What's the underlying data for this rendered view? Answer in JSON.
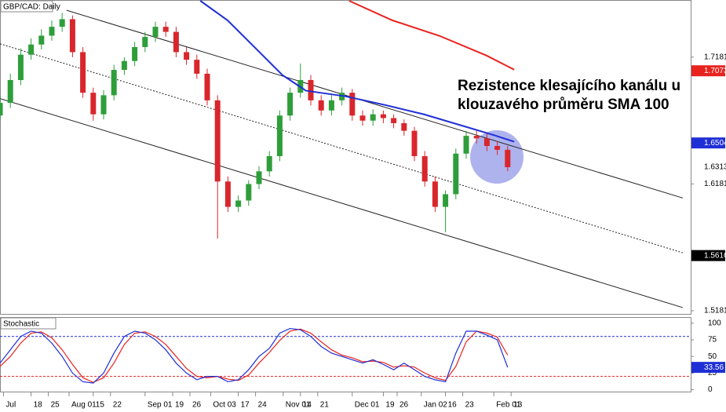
{
  "chart_data": [
    {
      "type": "candlestick",
      "title": "GBP/CAD: Daily",
      "annotation": [
        "Rezistence klesajícího kanálu u",
        "klouzavého průměru SMA 100"
      ],
      "up_color": "#2e9e3a",
      "down_color": "#d9262c",
      "xlim": [
        0,
        200
      ],
      "ylim": [
        1.5156,
        1.7625
      ],
      "yticks": [
        1.7181,
        1.6181,
        1.5181
      ],
      "xticks": [
        {
          "value": 1,
          "label": "Jul"
        },
        {
          "value": 9,
          "label": "18"
        },
        {
          "value": 14,
          "label": "25"
        },
        {
          "value": 20,
          "label": "Aug 01"
        },
        {
          "value": 27,
          "label": "15"
        },
        {
          "value": 32,
          "label": "22"
        },
        {
          "value": 42,
          "label": "Sep 01"
        },
        {
          "value": 50,
          "label": "19"
        },
        {
          "value": 55,
          "label": "26"
        },
        {
          "value": 61,
          "label": "Oct 03"
        },
        {
          "value": 69,
          "label": "17"
        },
        {
          "value": 74,
          "label": "24"
        },
        {
          "value": 82,
          "label": "Nov 01"
        },
        {
          "value": 87,
          "label": "14"
        },
        {
          "value": 92,
          "label": "21"
        },
        {
          "value": 102,
          "label": "Dec 01"
        },
        {
          "value": 111,
          "label": "19"
        },
        {
          "value": 115,
          "label": "26"
        },
        {
          "value": 122,
          "label": "Jan 02"
        },
        {
          "value": 129,
          "label": "16"
        },
        {
          "value": 134,
          "label": "23"
        },
        {
          "value": 143,
          "label": "Feb 01"
        },
        {
          "value": 148,
          "label": "13"
        }
      ],
      "x": [
        0,
        3,
        6,
        9,
        12,
        15,
        18,
        21,
        24,
        27,
        30,
        33,
        36,
        39,
        42,
        45,
        48,
        51,
        54,
        57,
        60,
        63,
        66,
        69,
        72,
        75,
        78,
        81,
        84,
        87,
        90,
        93,
        96,
        99,
        102,
        105,
        108,
        111,
        114,
        117,
        120,
        123,
        126,
        129,
        132,
        135,
        138,
        141,
        144,
        147
      ],
      "open": [
        1.672,
        1.682,
        1.7,
        1.72,
        1.728,
        1.735,
        1.742,
        1.748,
        1.722,
        1.69,
        1.673,
        1.688,
        1.708,
        1.715,
        1.726,
        1.734,
        1.742,
        1.738,
        1.722,
        1.716,
        1.705,
        1.684,
        1.62,
        1.6,
        1.605,
        1.618,
        1.628,
        1.64,
        1.672,
        1.69,
        1.7,
        1.684,
        1.676,
        1.684,
        1.69,
        1.672,
        1.668,
        1.673,
        1.67,
        1.666,
        1.66,
        1.64,
        1.62,
        1.6,
        1.61,
        1.642,
        1.656,
        1.654,
        1.648,
        1.645
      ],
      "high": [
        1.688,
        1.705,
        1.725,
        1.733,
        1.74,
        1.747,
        1.753,
        1.751,
        1.726,
        1.694,
        1.692,
        1.712,
        1.718,
        1.73,
        1.738,
        1.746,
        1.746,
        1.742,
        1.726,
        1.72,
        1.709,
        1.688,
        1.624,
        1.609,
        1.621,
        1.632,
        1.644,
        1.676,
        1.694,
        1.713,
        1.704,
        1.688,
        1.688,
        1.694,
        1.693,
        1.676,
        1.677,
        1.676,
        1.673,
        1.669,
        1.663,
        1.644,
        1.624,
        1.613,
        1.646,
        1.66,
        1.66,
        1.658,
        1.652,
        1.648
      ],
      "low": [
        1.668,
        1.678,
        1.696,
        1.716,
        1.724,
        1.731,
        1.738,
        1.718,
        1.686,
        1.668,
        1.669,
        1.684,
        1.704,
        1.711,
        1.722,
        1.73,
        1.734,
        1.718,
        1.712,
        1.701,
        1.68,
        1.575,
        1.596,
        1.596,
        1.601,
        1.614,
        1.624,
        1.636,
        1.668,
        1.686,
        1.68,
        1.672,
        1.672,
        1.68,
        1.668,
        1.664,
        1.664,
        1.666,
        1.662,
        1.656,
        1.636,
        1.616,
        1.596,
        1.58,
        1.606,
        1.638,
        1.65,
        1.644,
        1.641,
        1.628
      ],
      "close": [
        1.682,
        1.7,
        1.72,
        1.728,
        1.735,
        1.742,
        1.748,
        1.722,
        1.69,
        1.673,
        1.688,
        1.708,
        1.715,
        1.726,
        1.734,
        1.742,
        1.738,
        1.722,
        1.716,
        1.705,
        1.684,
        1.62,
        1.6,
        1.605,
        1.618,
        1.628,
        1.64,
        1.672,
        1.69,
        1.7,
        1.684,
        1.676,
        1.684,
        1.69,
        1.672,
        1.668,
        1.673,
        1.67,
        1.666,
        1.66,
        1.64,
        1.62,
        1.6,
        1.61,
        1.642,
        1.656,
        1.654,
        1.648,
        1.645,
        1.6313
      ],
      "lines": [
        {
          "color": "#1f2fd6",
          "x": [
            58,
            65.9,
            75,
            81.8,
            88.6,
            100,
            111.4,
            122.7,
            134.1,
            143.2,
            148.9
          ],
          "values": [
            1.7625,
            1.7471,
            1.7224,
            1.7039,
            1.6916,
            1.6872,
            1.6804,
            1.673,
            1.6638,
            1.6564,
            1.6514
          ]
        },
        {
          "color": "#e8231e",
          "x": [
            101.1,
            113.6,
            127.3,
            140.9,
            148.9
          ],
          "values": [
            1.7625,
            1.7471,
            1.7348,
            1.7193,
            1.7082
          ]
        }
      ],
      "channel": [
        {
          "style": "solid",
          "x": [
            19.3,
            197.7
          ],
          "values": [
            1.755,
            1.607
          ]
        },
        {
          "style": "dotted",
          "x": [
            0,
            197.7
          ],
          "values": [
            1.7286,
            1.5638
          ]
        },
        {
          "style": "solid",
          "x": [
            0,
            197.7
          ],
          "values": [
            1.6854,
            1.5206
          ]
        }
      ],
      "price_labels": [
        {
          "value": 1.7073,
          "bg": "#e8231e",
          "fg": "#ffffff"
        },
        {
          "value": 1.6504,
          "bg": "#1f2fd6",
          "fg": "#ffffff"
        },
        {
          "value": 1.6313,
          "bg": "#ffffff",
          "fg": "#000000"
        },
        {
          "value": 1.5616,
          "bg": "#000000",
          "fg": "#ffffff"
        }
      ]
    },
    {
      "type": "line",
      "title": "Stochastic",
      "xlim": [
        0,
        200
      ],
      "ylim": [
        -4,
        108
      ],
      "yticks": [
        100,
        75,
        50,
        25,
        0
      ],
      "levels": [
        {
          "value": 80,
          "color": "#1f2fd6"
        },
        {
          "value": 20,
          "color": "#e8231e"
        }
      ],
      "x": [
        0,
        3,
        6,
        9,
        12,
        15,
        18,
        21,
        24,
        27,
        30,
        33,
        36,
        39,
        42,
        45,
        48,
        51,
        54,
        57,
        60,
        63,
        66,
        69,
        72,
        75,
        78,
        81,
        84,
        87,
        90,
        93,
        96,
        99,
        102,
        105,
        108,
        111,
        114,
        117,
        120,
        123,
        126,
        129,
        132,
        135,
        138,
        141,
        144,
        147
      ],
      "series": [
        {
          "color": "#1f2fd6",
          "values": [
            40,
            60,
            80,
            88,
            85,
            70,
            50,
            25,
            12,
            10,
            25,
            55,
            80,
            88,
            85,
            75,
            60,
            40,
            25,
            15,
            20,
            20,
            12,
            15,
            30,
            50,
            62,
            85,
            92,
            90,
            80,
            65,
            55,
            50,
            45,
            40,
            45,
            38,
            30,
            40,
            30,
            20,
            15,
            12,
            55,
            88,
            88,
            82,
            75,
            33.56
          ]
        },
        {
          "color": "#e8231e",
          "values": [
            35,
            50,
            70,
            85,
            87,
            78,
            60,
            38,
            18,
            11,
            18,
            40,
            68,
            85,
            87,
            80,
            68,
            50,
            32,
            20,
            18,
            20,
            16,
            14,
            22,
            40,
            56,
            74,
            88,
            91,
            85,
            72,
            60,
            52,
            48,
            42,
            43,
            41,
            34,
            36,
            34,
            25,
            18,
            14,
            35,
            72,
            88,
            85,
            79,
            52
          ]
        }
      ]
    }
  ]
}
